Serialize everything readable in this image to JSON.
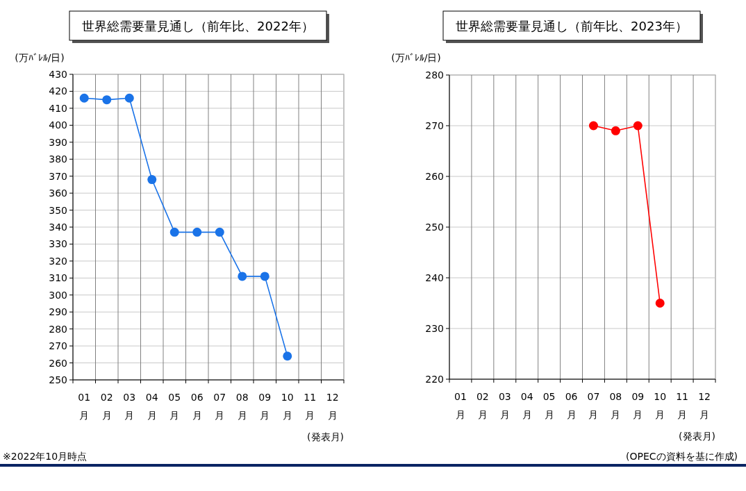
{
  "chart_data": [
    {
      "type": "line",
      "title": "世界総需要量見通し（前年比、2022年）",
      "ylabel": "(万ﾊﾞﾚﾙ/日)",
      "xlabel": "(発表月)",
      "categories": [
        "01\n月",
        "02\n月",
        "03\n月",
        "04\n月",
        "05\n月",
        "06\n月",
        "07\n月",
        "08\n月",
        "09\n月",
        "10\n月",
        "11\n月",
        "12\n月"
      ],
      "series": [
        {
          "color": "#1a73e8",
          "values": [
            416,
            415,
            416,
            368,
            337,
            337,
            337,
            311,
            311,
            264,
            null,
            null
          ]
        }
      ],
      "ylim": [
        250,
        430
      ],
      "yticks": [
        250,
        260,
        270,
        280,
        290,
        300,
        310,
        320,
        330,
        340,
        350,
        360,
        370,
        380,
        390,
        400,
        410,
        420,
        430
      ],
      "grid": true,
      "marker": "circle",
      "annotations": [
        "※2022年10月時点"
      ]
    },
    {
      "type": "line",
      "title": "世界総需要量見通し（前年比、2023年）",
      "ylabel": "(万ﾊﾞﾚﾙ/日)",
      "xlabel": "(発表月)",
      "categories": [
        "01\n月",
        "02\n月",
        "03\n月",
        "04\n月",
        "05\n月",
        "06\n月",
        "07\n月",
        "08\n月",
        "09\n月",
        "10\n月",
        "11\n月",
        "12\n月"
      ],
      "series": [
        {
          "color": "#ff0000",
          "values": [
            null,
            null,
            null,
            null,
            null,
            null,
            270,
            269,
            270,
            235,
            null,
            null
          ]
        }
      ],
      "ylim": [
        220,
        280
      ],
      "yticks": [
        220,
        230,
        240,
        250,
        260,
        270,
        280
      ],
      "grid": true,
      "marker": "circle",
      "annotations": [
        "(OPECの資料を基に作成)"
      ]
    }
  ]
}
